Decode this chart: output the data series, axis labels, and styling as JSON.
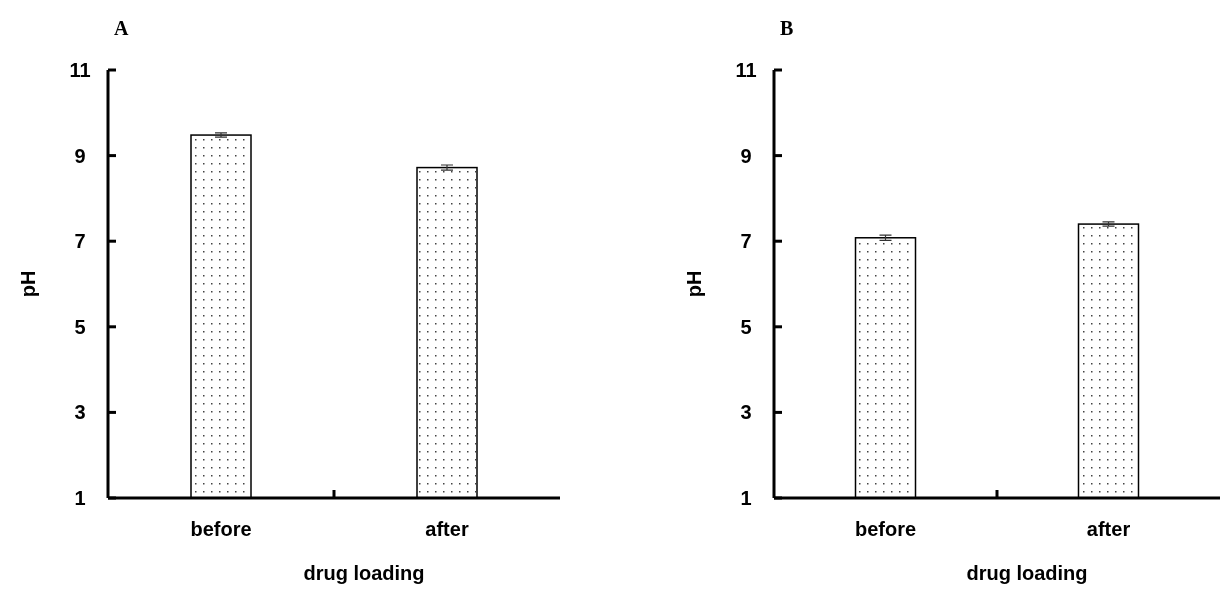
{
  "chart_data": [
    {
      "type": "bar",
      "title": "A",
      "xlabel": "drug loading",
      "ylabel": "pH",
      "categories": [
        "before",
        "after"
      ],
      "values": [
        9.48,
        8.72
      ],
      "errors": [
        0.05,
        0.06
      ],
      "color": "#ffffff",
      "ylim": [
        1,
        11
      ],
      "yticks": [
        1,
        3,
        5,
        7,
        9,
        11
      ],
      "grid": false
    },
    {
      "type": "bar",
      "title": "B",
      "xlabel": "drug loading",
      "ylabel": "pH",
      "categories": [
        "before",
        "after"
      ],
      "values": [
        7.08,
        7.4
      ],
      "errors": [
        0.06,
        0.05
      ],
      "color": "#ffffff",
      "ylim": [
        1,
        11
      ],
      "yticks": [
        1,
        3,
        5,
        7,
        9,
        11
      ],
      "grid": false
    }
  ]
}
